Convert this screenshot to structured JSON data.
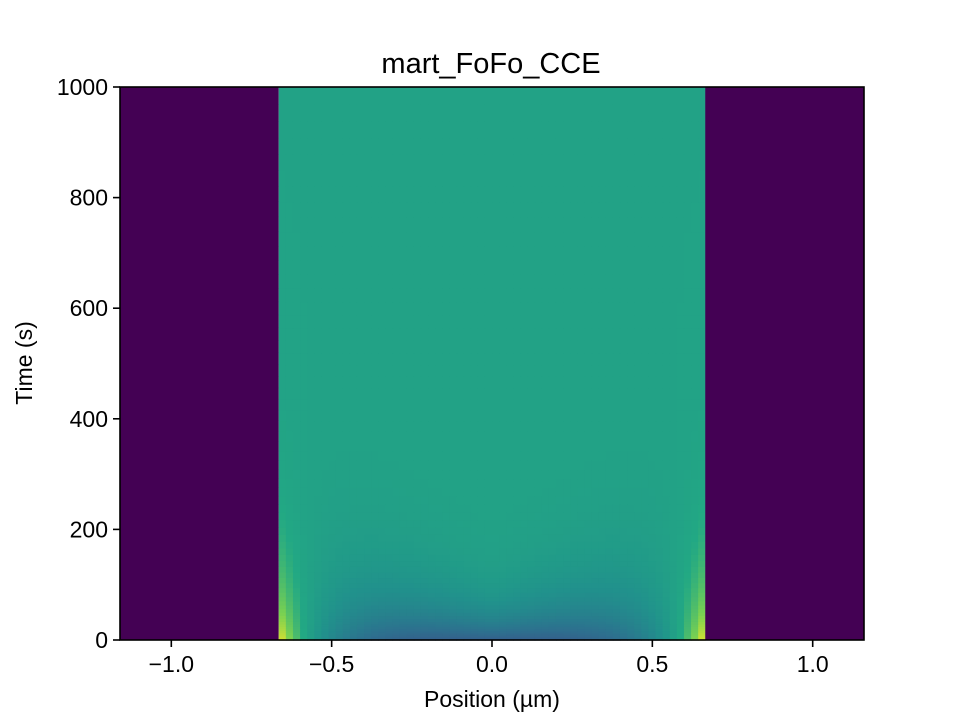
{
  "chart_data": {
    "type": "heatmap",
    "title": "mart_FoFo_CCE",
    "xlabel": "Position (µm)",
    "ylabel": "Time (s)",
    "xlim": [
      -1.16,
      1.16
    ],
    "ylim": [
      0,
      1000
    ],
    "x_ticks": [
      -1.0,
      -0.5,
      0.0,
      0.5,
      1.0
    ],
    "x_tick_labels": [
      "−1.0",
      "−0.5",
      "0.0",
      "0.5",
      "1.0"
    ],
    "y_ticks": [
      0,
      200,
      400,
      600,
      800,
      1000
    ],
    "y_tick_labels": [
      "0",
      "200",
      "400",
      "600",
      "800",
      "1000"
    ],
    "colormap": "viridis",
    "grid": false,
    "regions": [
      {
        "name": "outer-left",
        "x_range": [
          -1.16,
          -0.665
        ],
        "level": 0.0
      },
      {
        "name": "particle",
        "x_range": [
          -0.665,
          0.665
        ],
        "level": "varies"
      },
      {
        "name": "outer-right",
        "x_range": [
          0.665,
          1.16
        ],
        "level": 0.0
      }
    ],
    "particle_levels": {
      "steady_state": 0.72,
      "surface_initial": 1.0,
      "core_initial": 0.37,
      "center_transition_end_time": 200,
      "edge_transition_end_time": 450
    },
    "colors": {
      "outer": "#440154",
      "steady": "#5ac864",
      "surface_high": "#fde725",
      "core_low": "#2a788e"
    }
  }
}
